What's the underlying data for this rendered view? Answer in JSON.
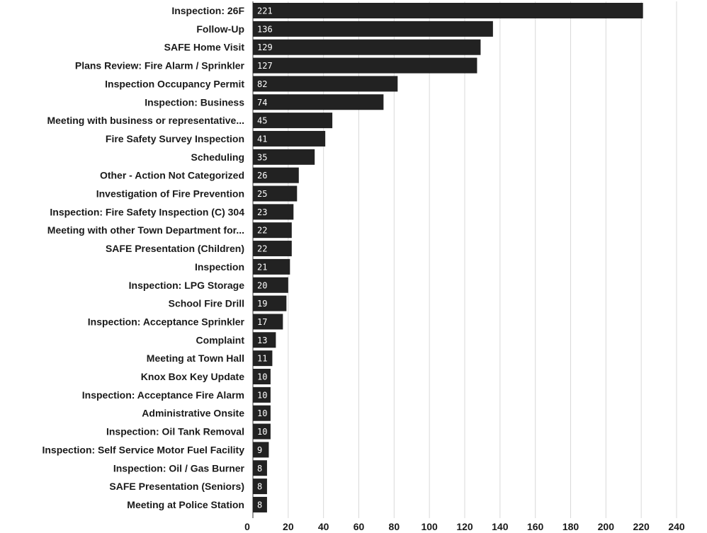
{
  "chart_data": {
    "type": "bar",
    "orientation": "horizontal",
    "title": "",
    "xlabel": "",
    "ylabel": "",
    "xlim": [
      0,
      240
    ],
    "xticks": [
      0,
      20,
      40,
      60,
      80,
      100,
      120,
      140,
      160,
      180,
      200,
      220,
      240
    ],
    "grid": "vertical",
    "legend": "none",
    "bar_color": "#222222",
    "value_label_color": "#ffffff",
    "categories": [
      "Inspection: 26F",
      "Follow-Up",
      "SAFE Home Visit",
      "Plans Review: Fire Alarm / Sprinkler",
      "Inspection Occupancy Permit",
      "Inspection: Business",
      "Meeting with business or representative...",
      "Fire Safety Survey Inspection",
      "Scheduling",
      "Other - Action Not Categorized",
      "Investigation of Fire Prevention",
      "Inspection: Fire Safety Inspection (C) 304",
      "Meeting with other Town Department for...",
      "SAFE Presentation (Children)",
      "Inspection",
      "Inspection: LPG Storage",
      "School Fire Drill",
      "Inspection: Acceptance Sprinkler",
      "Complaint",
      "Meeting at Town Hall",
      "Knox Box Key Update",
      "Inspection: Acceptance Fire Alarm",
      "Administrative Onsite",
      "Inspection: Oil Tank Removal",
      "Inspection: Self Service Motor Fuel Facility",
      "Inspection: Oil / Gas Burner",
      "SAFE Presentation (Seniors)",
      "Meeting at Police Station"
    ],
    "values": [
      221,
      136,
      129,
      127,
      82,
      74,
      45,
      41,
      35,
      26,
      25,
      23,
      22,
      22,
      21,
      20,
      19,
      17,
      13,
      11,
      10,
      10,
      10,
      10,
      9,
      8,
      8,
      8
    ]
  }
}
